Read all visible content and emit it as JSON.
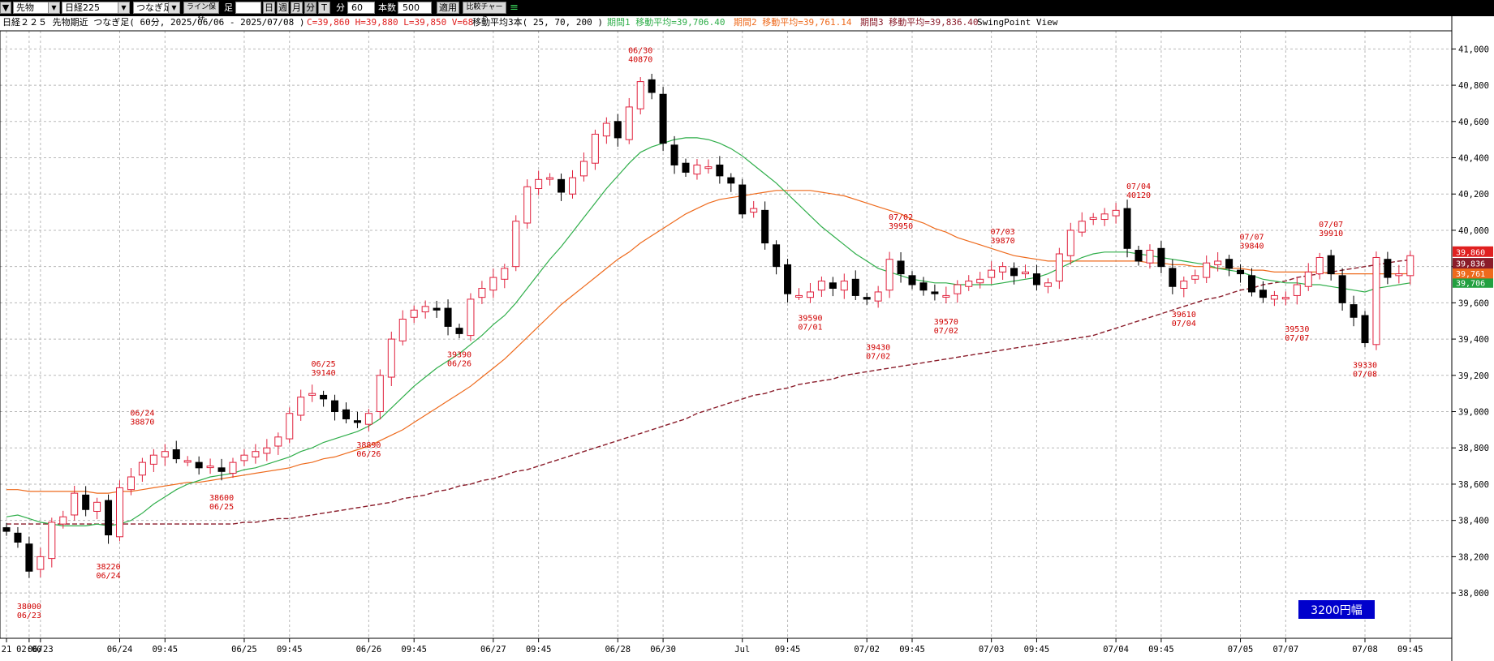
{
  "toolbar": {
    "menu_arrow": "▼",
    "instrument_type": "先物",
    "instrument": "日経225",
    "continuation": "つなぎ足",
    "line_save": "ライン保存",
    "bar_label": "足",
    "bar_btns": [
      "日",
      "週",
      "月",
      "分",
      "T"
    ],
    "active_bar": "分",
    "minute_unit_label": "分",
    "minute_value": "60",
    "count_label": "本数",
    "count_value": "500",
    "apply": "適用",
    "compare": "比較チャート",
    "glyph": "≡"
  },
  "info": {
    "title": "日経２２５ 先物期近 つなぎ足( 60分, 2025/06/06 - 2025/07/08 )",
    "ohlcv": "C=39,860 H=39,880 L=39,850 V=68",
    "ma_label": "移動平均3本( 25, 70, 200 )",
    "ma1": "期間1 移動平均=39,706.40",
    "ma2": "期間2 移動平均=39,761.14",
    "ma3": "期間3 移動平均=39,836.40",
    "swing": "SwingPoint View"
  },
  "colors": {
    "up": "#e0203c",
    "down": "#000000",
    "ma1": "#2fae4a",
    "ma2": "#ee6a1c",
    "ma3": "#8a1c2a",
    "grid": "#b8b8b8",
    "badge": "#0000cc",
    "swing": "#d00000",
    "price_tag": "#e02020",
    "ma1_tag": "#22a040",
    "ma2_tag": "#ee6a1c"
  },
  "badge": "3200円幅",
  "price_tags": {
    "current": "39,860",
    "ma3": "39,836",
    "ma2": "39,761",
    "ma1": "39,706"
  },
  "chart_data": {
    "type": "candlestick",
    "ylim": [
      37750,
      41100
    ],
    "yticks": [
      "38,000",
      "38,200",
      "38,400",
      "38,600",
      "38,800",
      "39,000",
      "39,200",
      "39,400",
      "39,600",
      "39,800",
      "40,000",
      "40,200",
      "40,400",
      "40,600",
      "40,800",
      "41,000"
    ],
    "ytick_values": [
      38000,
      38200,
      38400,
      38600,
      38800,
      39000,
      39200,
      39400,
      39600,
      39800,
      40000,
      40200,
      40400,
      40600,
      40800,
      41000
    ],
    "xticks": [
      "21",
      "02:00",
      "06/23",
      "06/24",
      "09:45",
      "06/25",
      "09:45",
      "06/26",
      "09:45",
      "06/27",
      "09:45",
      "06/28",
      "06/30",
      "Jul",
      "09:45",
      "07/02",
      "09:45",
      "07/03",
      "09:45",
      "07/04",
      "09:45",
      "07/05",
      "07/07",
      "07/08",
      "09:45"
    ],
    "xtick_bars": [
      0,
      2,
      3,
      10,
      14,
      21,
      25,
      32,
      36,
      43,
      47,
      54,
      58,
      65,
      69,
      76,
      80,
      87,
      91,
      98,
      102,
      109,
      113,
      120,
      124
    ],
    "swing_points": [
      {
        "bar": 2,
        "price": 38000,
        "date": "06/23",
        "type": "low"
      },
      {
        "bar": 9,
        "price": 38220,
        "date": "06/24",
        "type": "low"
      },
      {
        "bar": 12,
        "price": 38870,
        "date": "06/24",
        "type": "high"
      },
      {
        "bar": 19,
        "price": 38600,
        "date": "06/25",
        "type": "low"
      },
      {
        "bar": 28,
        "price": 39140,
        "date": "06/25",
        "type": "high"
      },
      {
        "bar": 32,
        "price": 38890,
        "date": "06/26",
        "type": "low"
      },
      {
        "bar": 40,
        "price": 39390,
        "date": "06/26",
        "type": "low"
      },
      {
        "bar": 56,
        "price": 40870,
        "date": "06/30",
        "type": "high"
      },
      {
        "bar": 71,
        "price": 39590,
        "date": "07/01",
        "type": "low"
      },
      {
        "bar": 77,
        "price": 39430,
        "date": "07/02",
        "type": "low"
      },
      {
        "bar": 79,
        "price": 39950,
        "date": "07/02",
        "type": "high"
      },
      {
        "bar": 83,
        "price": 39570,
        "date": "07/02",
        "type": "low"
      },
      {
        "bar": 88,
        "price": 39870,
        "date": "07/03",
        "type": "high"
      },
      {
        "bar": 100,
        "price": 40120,
        "date": "07/04",
        "type": "high"
      },
      {
        "bar": 104,
        "price": 39610,
        "date": "07/04",
        "type": "low"
      },
      {
        "bar": 110,
        "price": 39840,
        "date": "07/07",
        "type": "high"
      },
      {
        "bar": 114,
        "price": 39530,
        "date": "07/07",
        "type": "low"
      },
      {
        "bar": 117,
        "price": 39910,
        "date": "07/07",
        "type": "high"
      },
      {
        "bar": 120,
        "price": 39330,
        "date": "07/08",
        "type": "low"
      }
    ],
    "close": [
      38340,
      38280,
      38120,
      38200,
      38390,
      38420,
      38550,
      38460,
      38500,
      38320,
      38580,
      38640,
      38720,
      38760,
      38780,
      38740,
      38730,
      38690,
      38700,
      38670,
      38720,
      38760,
      38780,
      38800,
      38860,
      38990,
      39080,
      39100,
      39070,
      39000,
      38960,
      38940,
      38990,
      39200,
      39400,
      39510,
      39560,
      39580,
      39560,
      39470,
      39430,
      39620,
      39680,
      39740,
      39790,
      40050,
      40240,
      40280,
      40290,
      40210,
      40290,
      40380,
      40530,
      40590,
      40510,
      40680,
      40820,
      40760,
      40480,
      40360,
      40320,
      40360,
      40350,
      40300,
      40260,
      40090,
      40120,
      39930,
      39800,
      39650,
      39640,
      39660,
      39720,
      39680,
      39720,
      39640,
      39620,
      39660,
      39840,
      39760,
      39700,
      39670,
      39650,
      39640,
      39700,
      39720,
      39730,
      39780,
      39800,
      39750,
      39770,
      39700,
      39710,
      39870,
      40000,
      40050,
      40070,
      40090,
      40110,
      39900,
      39830,
      39890,
      39800,
      39690,
      39720,
      39750,
      39820,
      39830,
      39790,
      39760,
      39660,
      39630,
      39640,
      39630,
      39700,
      39770,
      39850,
      39760,
      39600,
      39520,
      39380,
      39850,
      39740,
      39760,
      39860
    ],
    "series": [
      {
        "name": "期間1 移動平均",
        "values": [
          38420,
          38430,
          38410,
          38390,
          38380,
          38370,
          38370,
          38370,
          38380,
          38370,
          38380,
          38400,
          38440,
          38490,
          38530,
          38570,
          38600,
          38620,
          38640,
          38650,
          38660,
          38680,
          38690,
          38710,
          38730,
          38750,
          38780,
          38800,
          38830,
          38850,
          38870,
          38890,
          38920,
          38960,
          39020,
          39080,
          39140,
          39190,
          39240,
          39280,
          39320,
          39370,
          39420,
          39480,
          39530,
          39600,
          39680,
          39760,
          39840,
          39910,
          39990,
          40070,
          40150,
          40230,
          40300,
          40370,
          40430,
          40460,
          40480,
          40500,
          40510,
          40510,
          40500,
          40480,
          40450,
          40410,
          40360,
          40310,
          40260,
          40200,
          40140,
          40080,
          40020,
          39970,
          39920,
          39870,
          39830,
          39790,
          39770,
          39750,
          39730,
          39720,
          39710,
          39710,
          39700,
          39700,
          39700,
          39700,
          39710,
          39720,
          39730,
          39740,
          39760,
          39790,
          39820,
          39850,
          39870,
          39880,
          39880,
          39880,
          39870,
          39860,
          39850,
          39840,
          39830,
          39820,
          39810,
          39790,
          39780,
          39770,
          39750,
          39730,
          39720,
          39710,
          39710,
          39700,
          39700,
          39690,
          39680,
          39670,
          39660,
          39680,
          39690,
          39700,
          39710
        ]
      },
      {
        "name": "期間2 移動平均",
        "values": [
          38570,
          38570,
          38560,
          38560,
          38560,
          38560,
          38560,
          38560,
          38550,
          38550,
          38560,
          38560,
          38570,
          38580,
          38590,
          38600,
          38610,
          38610,
          38620,
          38630,
          38640,
          38650,
          38660,
          38670,
          38680,
          38690,
          38710,
          38720,
          38740,
          38750,
          38770,
          38790,
          38810,
          38840,
          38870,
          38900,
          38940,
          38980,
          39020,
          39060,
          39100,
          39140,
          39190,
          39240,
          39290,
          39350,
          39410,
          39470,
          39530,
          39590,
          39640,
          39690,
          39740,
          39790,
          39840,
          39880,
          39930,
          39970,
          40010,
          40050,
          40090,
          40120,
          40150,
          40170,
          40180,
          40190,
          40200,
          40210,
          40220,
          40220,
          40220,
          40220,
          40210,
          40200,
          40190,
          40170,
          40150,
          40130,
          40110,
          40090,
          40060,
          40040,
          40010,
          39990,
          39960,
          39940,
          39920,
          39900,
          39880,
          39860,
          39850,
          39840,
          39830,
          39830,
          39830,
          39830,
          39830,
          39830,
          39830,
          39830,
          39830,
          39820,
          39820,
          39810,
          39810,
          39800,
          39800,
          39790,
          39790,
          39790,
          39780,
          39780,
          39770,
          39770,
          39770,
          39770,
          39770,
          39760,
          39760,
          39760,
          39760,
          39760,
          39760,
          39760,
          39761
        ]
      },
      {
        "name": "期間3 移動平均",
        "values": [
          38380,
          38380,
          38380,
          38380,
          38380,
          38380,
          38380,
          38380,
          38380,
          38380,
          38380,
          38380,
          38380,
          38380,
          38380,
          38380,
          38380,
          38380,
          38380,
          38380,
          38380,
          38390,
          38390,
          38400,
          38410,
          38410,
          38420,
          38430,
          38440,
          38450,
          38460,
          38470,
          38480,
          38490,
          38500,
          38520,
          38530,
          38540,
          38560,
          38570,
          38590,
          38600,
          38620,
          38630,
          38650,
          38670,
          38680,
          38700,
          38720,
          38740,
          38760,
          38780,
          38800,
          38820,
          38840,
          38860,
          38880,
          38900,
          38920,
          38940,
          38960,
          38990,
          39010,
          39030,
          39050,
          39070,
          39090,
          39100,
          39120,
          39130,
          39150,
          39160,
          39170,
          39180,
          39200,
          39210,
          39220,
          39230,
          39240,
          39250,
          39260,
          39270,
          39280,
          39290,
          39300,
          39310,
          39320,
          39330,
          39340,
          39350,
          39360,
          39370,
          39380,
          39390,
          39400,
          39410,
          39420,
          39440,
          39460,
          39480,
          39500,
          39520,
          39540,
          39560,
          39580,
          39600,
          39620,
          39630,
          39650,
          39670,
          39680,
          39700,
          39710,
          39720,
          39740,
          39750,
          39760,
          39770,
          39780,
          39790,
          39800,
          39810,
          39820,
          39830,
          39836
        ]
      }
    ]
  }
}
